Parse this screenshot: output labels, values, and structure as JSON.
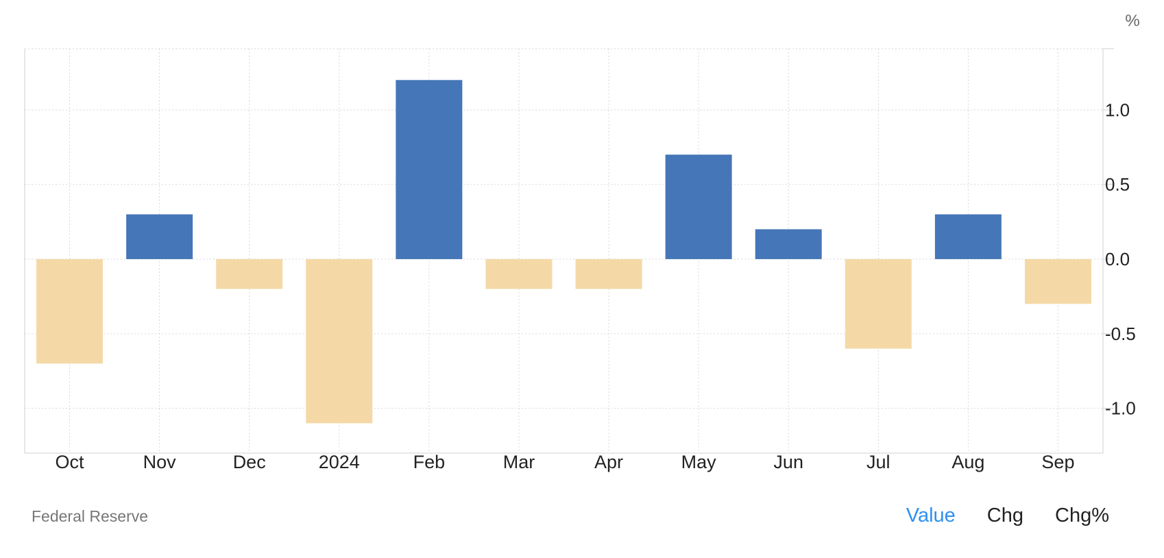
{
  "chart_data": {
    "type": "bar",
    "categories": [
      "Oct",
      "Nov",
      "Dec",
      "2024",
      "Feb",
      "Mar",
      "Apr",
      "May",
      "Jun",
      "Jul",
      "Aug",
      "Sep"
    ],
    "values": [
      -0.7,
      0.3,
      -0.2,
      -1.1,
      1.2,
      -0.2,
      -0.2,
      0.7,
      0.2,
      -0.6,
      0.3,
      -0.3
    ],
    "y_unit": "%",
    "y_ticks": [
      "1.0",
      "0.5",
      "0.0",
      "-0.5",
      "-1.0"
    ],
    "y_tick_values": [
      1.0,
      0.5,
      0.0,
      -0.5,
      -1.0
    ],
    "ylim": [
      -1.3,
      1.41
    ],
    "grid": true,
    "colors": {
      "positive": "#4576b8",
      "negative": "#f4d9a7"
    }
  },
  "source": "Federal Reserve",
  "toggles": [
    {
      "label": "Value",
      "active": true
    },
    {
      "label": "Chg",
      "active": false
    },
    {
      "label": "Chg%",
      "active": false
    }
  ]
}
